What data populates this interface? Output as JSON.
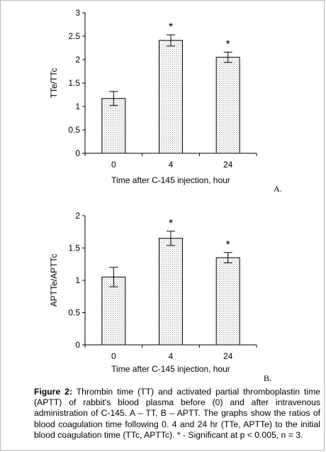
{
  "chart_data": [
    {
      "type": "bar",
      "categories": [
        "0",
        "4",
        "24"
      ],
      "values": [
        1.17,
        2.41,
        2.05
      ],
      "errors": [
        0.15,
        0.12,
        0.11
      ],
      "significant": [
        false,
        true,
        true
      ],
      "significance_marker": "*",
      "xlabel": "Time after C-145 injection, hour",
      "ylabel": "TTe/TTc",
      "ylim": [
        0,
        3
      ],
      "yticks": [
        "0",
        "0.5",
        "1",
        "1.5",
        "2",
        "2.5",
        "3"
      ],
      "panel_label": "A.",
      "grid": false,
      "bar_fill": "#e8e8e8"
    },
    {
      "type": "bar",
      "categories": [
        "0",
        "4",
        "24"
      ],
      "values": [
        1.05,
        1.65,
        1.35
      ],
      "errors": [
        0.15,
        0.11,
        0.08
      ],
      "significant": [
        false,
        true,
        true
      ],
      "significance_marker": "*",
      "xlabel": "Time after C-145 injection, hour",
      "ylabel": "APTTe/APTTc",
      "ylim": [
        0,
        2
      ],
      "yticks": [
        "0",
        "0.5",
        "1",
        "1.5",
        "2"
      ],
      "panel_label": "B.",
      "grid": false,
      "bar_fill": "#e8e8e8"
    }
  ],
  "caption": {
    "label": "Figure 2:",
    "text": "Thrombin time (TT) and activated partial thromboplastin time (APTT) of rabbit's blood plasma before (0) and after intravenous administration of C-145. A – TT, B – APTT. The graphs show the ratios of blood coagulation time following 0. 4 and 24 hr (TTe, APTTe) to the initial blood coagulation time (TTc, APTTc). * - Significant at p < 0.005, n = 3."
  }
}
